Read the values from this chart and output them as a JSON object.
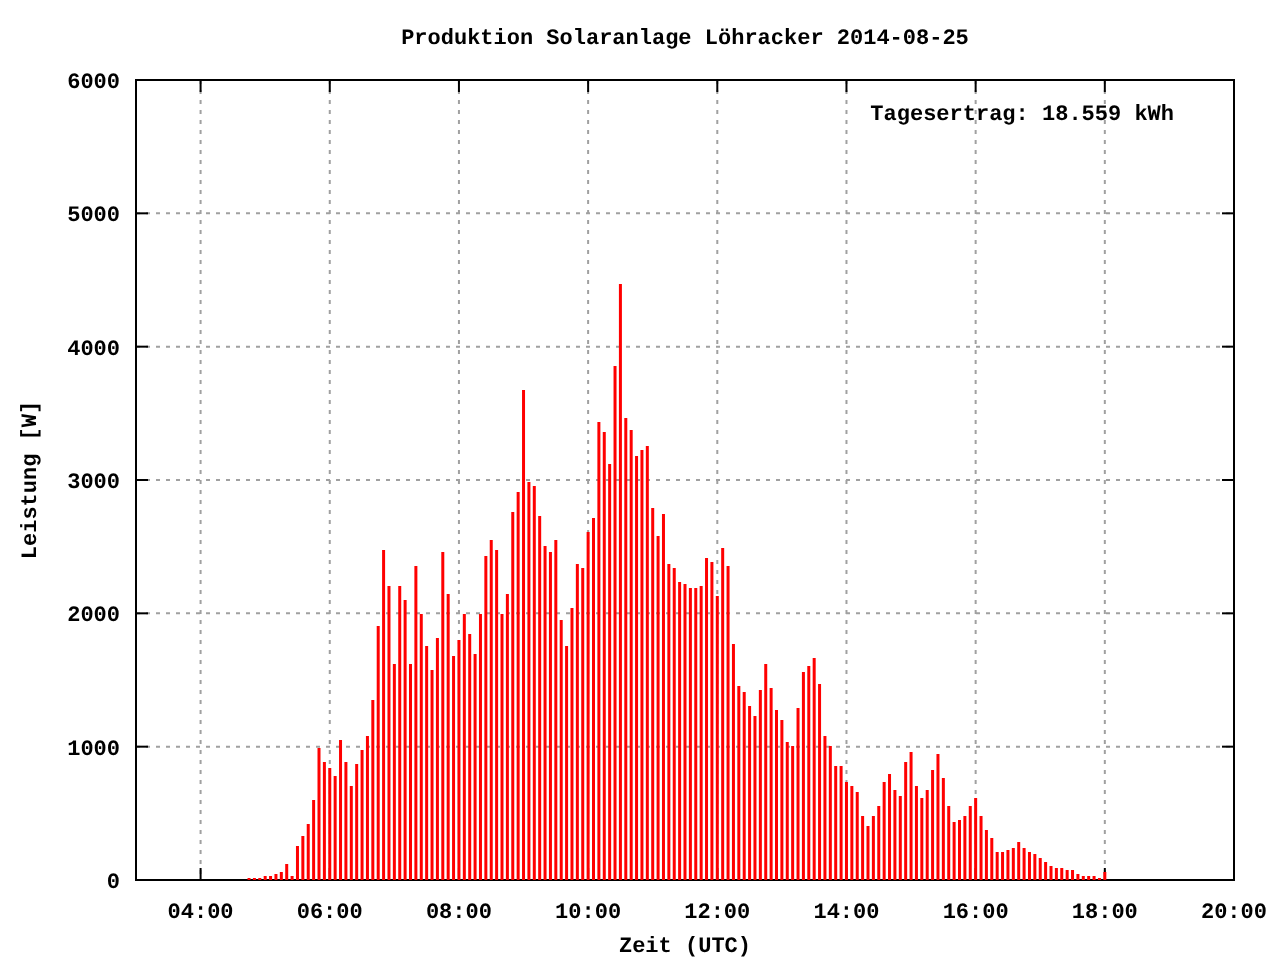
{
  "chart_data": {
    "type": "bar",
    "title": "Produktion Solaranlage Löhracker 2014-08-25",
    "xlabel": "Zeit (UTC)",
    "ylabel": "Leistung [W]",
    "annotations": [
      "Tagesertrag: 18.559 kWh"
    ],
    "x": [
      "2014-08-25T04:45",
      "2014-08-25T04:50",
      "2014-08-25T04:55",
      "2014-08-25T05:00",
      "2014-08-25T05:05",
      "2014-08-25T05:10",
      "2014-08-25T05:15",
      "2014-08-25T05:20",
      "2014-08-25T05:25",
      "2014-08-25T05:30",
      "2014-08-25T05:35",
      "2014-08-25T05:40",
      "2014-08-25T05:45",
      "2014-08-25T05:50",
      "2014-08-25T05:55",
      "2014-08-25T06:00",
      "2014-08-25T06:05",
      "2014-08-25T06:10",
      "2014-08-25T06:15",
      "2014-08-25T06:20",
      "2014-08-25T06:25",
      "2014-08-25T06:30",
      "2014-08-25T06:35",
      "2014-08-25T06:40",
      "2014-08-25T06:45",
      "2014-08-25T06:50",
      "2014-08-25T06:55",
      "2014-08-25T07:00",
      "2014-08-25T07:05",
      "2014-08-25T07:10",
      "2014-08-25T07:15",
      "2014-08-25T07:20",
      "2014-08-25T07:25",
      "2014-08-25T07:30",
      "2014-08-25T07:35",
      "2014-08-25T07:40",
      "2014-08-25T07:45",
      "2014-08-25T07:50",
      "2014-08-25T07:55",
      "2014-08-25T08:00",
      "2014-08-25T08:05",
      "2014-08-25T08:10",
      "2014-08-25T08:15",
      "2014-08-25T08:20",
      "2014-08-25T08:25",
      "2014-08-25T08:30",
      "2014-08-25T08:35",
      "2014-08-25T08:40",
      "2014-08-25T08:45",
      "2014-08-25T08:50",
      "2014-08-25T08:55",
      "2014-08-25T09:00",
      "2014-08-25T09:05",
      "2014-08-25T09:10",
      "2014-08-25T09:15",
      "2014-08-25T09:20",
      "2014-08-25T09:25",
      "2014-08-25T09:30",
      "2014-08-25T09:35",
      "2014-08-25T09:40",
      "2014-08-25T09:45",
      "2014-08-25T09:50",
      "2014-08-25T09:55",
      "2014-08-25T10:00",
      "2014-08-25T10:05",
      "2014-08-25T10:10",
      "2014-08-25T10:15",
      "2014-08-25T10:20",
      "2014-08-25T10:25",
      "2014-08-25T10:30",
      "2014-08-25T10:35",
      "2014-08-25T10:40",
      "2014-08-25T10:45",
      "2014-08-25T10:50",
      "2014-08-25T10:55",
      "2014-08-25T11:00",
      "2014-08-25T11:05",
      "2014-08-25T11:10",
      "2014-08-25T11:15",
      "2014-08-25T11:20",
      "2014-08-25T11:25",
      "2014-08-25T11:30",
      "2014-08-25T11:35",
      "2014-08-25T11:40",
      "2014-08-25T11:45",
      "2014-08-25T11:50",
      "2014-08-25T11:55",
      "2014-08-25T12:00",
      "2014-08-25T12:05",
      "2014-08-25T12:10",
      "2014-08-25T12:15",
      "2014-08-25T12:20",
      "2014-08-25T12:25",
      "2014-08-25T12:30",
      "2014-08-25T12:35",
      "2014-08-25T12:40",
      "2014-08-25T12:45",
      "2014-08-25T12:50",
      "2014-08-25T12:55",
      "2014-08-25T13:00",
      "2014-08-25T13:05",
      "2014-08-25T13:10",
      "2014-08-25T13:15",
      "2014-08-25T13:20",
      "2014-08-25T13:25",
      "2014-08-25T13:30",
      "2014-08-25T13:35",
      "2014-08-25T13:40",
      "2014-08-25T13:45",
      "2014-08-25T13:50",
      "2014-08-25T13:55",
      "2014-08-25T14:00",
      "2014-08-25T14:05",
      "2014-08-25T14:10",
      "2014-08-25T14:15",
      "2014-08-25T14:20",
      "2014-08-25T14:25",
      "2014-08-25T14:30",
      "2014-08-25T14:35",
      "2014-08-25T14:40",
      "2014-08-25T14:45",
      "2014-08-25T14:50",
      "2014-08-25T14:55",
      "2014-08-25T15:00",
      "2014-08-25T15:05",
      "2014-08-25T15:10",
      "2014-08-25T15:15",
      "2014-08-25T15:20",
      "2014-08-25T15:25",
      "2014-08-25T15:30",
      "2014-08-25T15:35",
      "2014-08-25T15:40",
      "2014-08-25T15:45",
      "2014-08-25T15:50",
      "2014-08-25T15:55",
      "2014-08-25T16:00",
      "2014-08-25T16:05",
      "2014-08-25T16:10",
      "2014-08-25T16:15",
      "2014-08-25T16:20",
      "2014-08-25T16:25",
      "2014-08-25T16:30",
      "2014-08-25T16:35",
      "2014-08-25T16:40",
      "2014-08-25T16:45",
      "2014-08-25T16:50",
      "2014-08-25T16:55",
      "2014-08-25T17:00",
      "2014-08-25T17:05",
      "2014-08-25T17:10",
      "2014-08-25T17:15",
      "2014-08-25T17:20",
      "2014-08-25T17:25",
      "2014-08-25T17:30",
      "2014-08-25T17:35",
      "2014-08-25T17:40",
      "2014-08-25T17:45",
      "2014-08-25T17:50",
      "2014-08-25T17:55",
      "2014-08-25T18:00"
    ],
    "values": [
      15,
      15,
      15,
      30,
      30,
      45,
      60,
      120,
      30,
      255,
      330,
      420,
      600,
      990,
      885,
      840,
      780,
      1050,
      885,
      705,
      870,
      975,
      1080,
      1350,
      1905,
      2475,
      2205,
      1620,
      2205,
      2100,
      1620,
      2355,
      1995,
      1755,
      1575,
      1815,
      2460,
      2145,
      1680,
      1800,
      1995,
      1845,
      1695,
      1995,
      2430,
      2550,
      2475,
      1995,
      2145,
      2760,
      2910,
      3675,
      2985,
      2955,
      2730,
      2505,
      2460,
      2550,
      1950,
      1755,
      2040,
      2370,
      2340,
      2610,
      2715,
      3435,
      3360,
      3120,
      3855,
      4470,
      3465,
      3375,
      3180,
      3225,
      3255,
      2790,
      2580,
      2745,
      2370,
      2340,
      2235,
      2220,
      2190,
      2190,
      2205,
      2415,
      2385,
      2130,
      2490,
      2355,
      1770,
      1455,
      1410,
      1305,
      1230,
      1425,
      1620,
      1440,
      1275,
      1200,
      1035,
      1005,
      1290,
      1560,
      1605,
      1665,
      1470,
      1080,
      1005,
      855,
      855,
      735,
      705,
      660,
      480,
      405,
      480,
      555,
      735,
      795,
      675,
      630,
      885,
      960,
      705,
      615,
      675,
      825,
      945,
      765,
      555,
      435,
      450,
      480,
      555,
      615,
      480,
      375,
      315,
      210,
      210,
      225,
      240,
      285,
      240,
      210,
      195,
      165,
      135,
      105,
      90,
      90,
      75,
      75,
      45,
      30,
      30,
      30,
      15,
      60
    ],
    "color": "#ff0000",
    "xlim": [
      "2014-08-25T03:00",
      "2014-08-25T20:00"
    ],
    "xticks": [
      {
        "value": "2014-08-25T04:00",
        "label": "04:00"
      },
      {
        "value": "2014-08-25T06:00",
        "label": "06:00"
      },
      {
        "value": "2014-08-25T08:00",
        "label": "08:00"
      },
      {
        "value": "2014-08-25T10:00",
        "label": "10:00"
      },
      {
        "value": "2014-08-25T12:00",
        "label": "12:00"
      },
      {
        "value": "2014-08-25T14:00",
        "label": "14:00"
      },
      {
        "value": "2014-08-25T16:00",
        "label": "16:00"
      },
      {
        "value": "2014-08-25T18:00",
        "label": "18:00"
      },
      {
        "value": "2014-08-25T20:00",
        "label": "20:00"
      }
    ],
    "ylim": [
      0,
      6000
    ],
    "yticks": [
      0,
      1000,
      2000,
      3000,
      4000,
      5000,
      6000
    ],
    "grid": true
  }
}
